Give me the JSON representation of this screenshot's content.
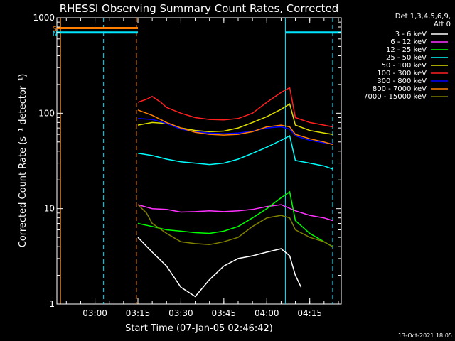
{
  "chart_data": {
    "type": "line",
    "title": "RHESSI Observing Summary Count Rates, Corrected",
    "xlabel": "Start Time (07-Jan-05 02:46:42)",
    "ylabel": "Corrected Count Rate (s⁻¹ detector⁻¹)",
    "yscale": "log",
    "ylim": [
      1,
      1000
    ],
    "xlim": [
      "02:46:42",
      "04:26:00"
    ],
    "xticks": [
      "03:00",
      "03:15",
      "03:30",
      "03:45",
      "04:00",
      "04:15"
    ],
    "yticks": [
      "1",
      "10",
      "100",
      "1000"
    ],
    "grid": false,
    "legend_position": "right",
    "legend_header": [
      "Det 1,3,4,5,6,9,",
      "Att 0"
    ],
    "footer_date": "13-Oct-2021 18:05",
    "flag_bars": [
      {
        "label": "S",
        "color": "#ff8000",
        "start": "02:46:42",
        "end": "03:15:00",
        "level": 780
      },
      {
        "label": "N",
        "color": "#00e5ff",
        "start": "02:46:42",
        "end": "03:15:00",
        "level": 700
      },
      {
        "label": "",
        "color": "#00e5ff",
        "start": "04:06:30",
        "end": "04:26:00",
        "level": 700
      }
    ],
    "vertical_markers": [
      {
        "time": "02:48:00",
        "color": "#ff8000",
        "style": "solid"
      },
      {
        "time": "03:03:00",
        "color": "#00e5ff",
        "style": "dashed"
      },
      {
        "time": "03:14:30",
        "color": "#ff8000",
        "style": "dashed"
      },
      {
        "time": "04:06:30",
        "color": "#00e5ff",
        "style": "solid"
      },
      {
        "time": "04:23:00",
        "color": "#00e5ff",
        "style": "dashed"
      }
    ],
    "series": [
      {
        "name": "3 - 6 keV",
        "color": "#ffffff",
        "x": [
          "03:15",
          "03:20",
          "03:25",
          "03:30",
          "03:35",
          "03:40",
          "03:45",
          "03:50",
          "03:55",
          "04:00",
          "04:05",
          "04:08",
          "04:10",
          "04:12"
        ],
        "y": [
          5,
          3.5,
          2.5,
          1.5,
          1.2,
          1.8,
          2.5,
          3,
          3.2,
          3.5,
          3.8,
          3.2,
          2,
          1.5
        ]
      },
      {
        "name": "6 - 12 keV",
        "color": "#ff33ff",
        "x": [
          "03:15",
          "03:20",
          "03:25",
          "03:30",
          "03:35",
          "03:40",
          "03:45",
          "03:50",
          "03:55",
          "04:00",
          "04:05",
          "04:10",
          "04:15",
          "04:20",
          "04:23"
        ],
        "y": [
          11,
          10,
          9.8,
          9.2,
          9.3,
          9.5,
          9.3,
          9.5,
          9.8,
          10.5,
          11,
          9.5,
          8.5,
          8,
          7.5
        ]
      },
      {
        "name": "12 - 25 keV",
        "color": "#00ff00",
        "x": [
          "03:15",
          "03:20",
          "03:25",
          "03:30",
          "03:35",
          "03:40",
          "03:45",
          "03:50",
          "03:55",
          "04:00",
          "04:05",
          "04:08",
          "04:10",
          "04:15",
          "04:20",
          "04:23"
        ],
        "y": [
          7,
          6.5,
          6,
          5.8,
          5.6,
          5.5,
          5.8,
          6.5,
          8,
          10,
          13,
          15,
          7.5,
          5.5,
          4.5,
          4
        ]
      },
      {
        "name": "25 - 50 keV",
        "color": "#00ffff",
        "x": [
          "03:15",
          "03:20",
          "03:25",
          "03:30",
          "03:35",
          "03:40",
          "03:45",
          "03:50",
          "03:55",
          "04:00",
          "04:05",
          "04:08",
          "04:10",
          "04:15",
          "04:20",
          "04:23"
        ],
        "y": [
          38,
          36,
          33,
          31,
          30,
          29,
          30,
          33,
          38,
          44,
          52,
          58,
          32,
          30,
          28,
          26
        ]
      },
      {
        "name": "50 - 100 keV",
        "color": "#dddd00",
        "x": [
          "03:15",
          "03:20",
          "03:25",
          "03:30",
          "03:35",
          "03:40",
          "03:45",
          "03:50",
          "03:55",
          "04:00",
          "04:05",
          "04:08",
          "04:10",
          "04:15",
          "04:20",
          "04:23"
        ],
        "y": [
          75,
          80,
          78,
          70,
          66,
          64,
          65,
          70,
          80,
          92,
          110,
          125,
          75,
          66,
          62,
          60
        ]
      },
      {
        "name": "100 - 300 keV",
        "color": "#ff2020",
        "x": [
          "03:15",
          "03:18",
          "03:20",
          "03:23",
          "03:25",
          "03:30",
          "03:35",
          "03:40",
          "03:45",
          "03:50",
          "03:55",
          "04:00",
          "04:05",
          "04:08",
          "04:10",
          "04:15",
          "04:20",
          "04:23"
        ],
        "y": [
          130,
          140,
          150,
          130,
          115,
          100,
          90,
          86,
          85,
          88,
          100,
          130,
          165,
          185,
          90,
          80,
          75,
          72
        ]
      },
      {
        "name": "300 - 800 keV",
        "color": "#0000ff",
        "x": [
          "03:15",
          "03:20",
          "03:25",
          "03:30",
          "03:35",
          "03:40",
          "03:45",
          "03:50",
          "03:55",
          "04:00",
          "04:05",
          "04:08",
          "04:10",
          "04:15",
          "04:20",
          "04:23"
        ],
        "y": [
          88,
          86,
          78,
          68,
          64,
          62,
          61,
          62,
          65,
          70,
          72,
          68,
          58,
          52,
          49,
          48
        ]
      },
      {
        "name": "800 - 7000 keV",
        "color": "#ff8000",
        "x": [
          "03:15",
          "03:20",
          "03:25",
          "03:30",
          "03:35",
          "03:40",
          "03:45",
          "03:50",
          "03:55",
          "04:00",
          "04:05",
          "04:08",
          "04:10",
          "04:15",
          "04:20",
          "04:23"
        ],
        "y": [
          108,
          95,
          80,
          70,
          63,
          60,
          59,
          60,
          64,
          72,
          75,
          72,
          60,
          54,
          50,
          47
        ]
      },
      {
        "name": "7000 - 15000 keV",
        "color": "#808000",
        "x": [
          "03:15",
          "03:18",
          "03:20",
          "03:25",
          "03:30",
          "03:35",
          "03:40",
          "03:45",
          "03:50",
          "03:55",
          "04:00",
          "04:05",
          "04:08",
          "04:10",
          "04:15",
          "04:20",
          "04:23"
        ],
        "y": [
          11,
          9,
          7,
          5.5,
          4.5,
          4.3,
          4.2,
          4.5,
          5,
          6.5,
          8,
          8.5,
          8,
          6,
          5,
          4.5,
          4
        ]
      }
    ]
  }
}
